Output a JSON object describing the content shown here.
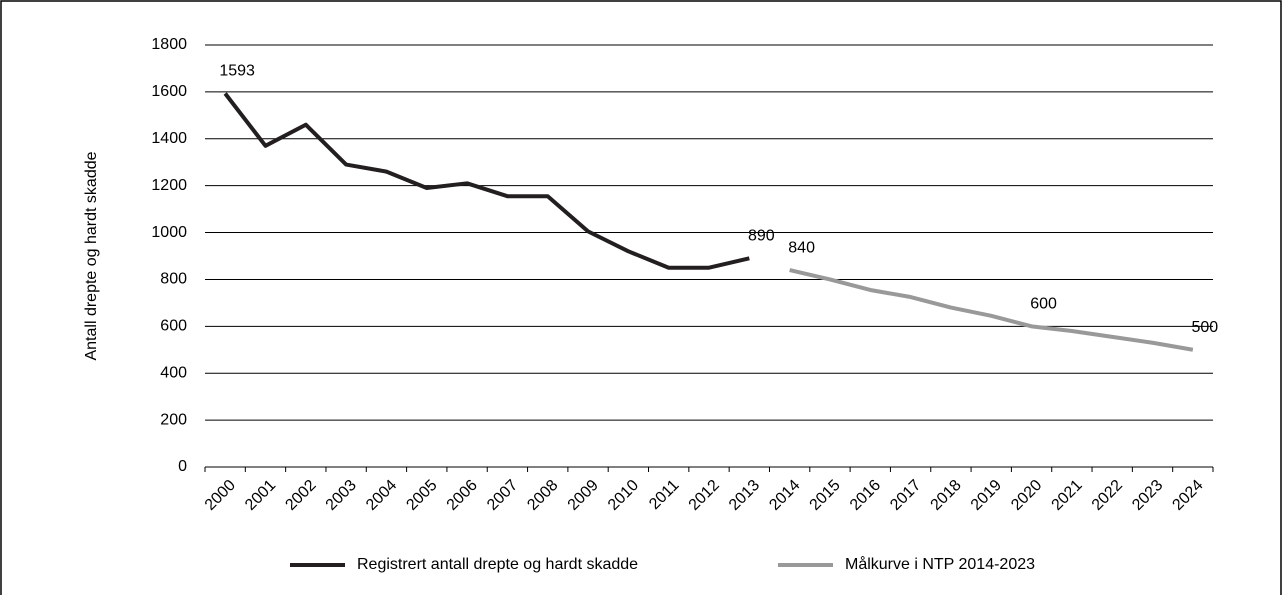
{
  "chart_data": {
    "type": "line",
    "y_label": "Antall drepte og hardt skadde",
    "categories": [
      "2000",
      "2001",
      "2002",
      "2003",
      "2004",
      "2005",
      "2006",
      "2007",
      "2008",
      "2009",
      "2010",
      "2011",
      "2012",
      "2013",
      "2014",
      "2015",
      "2016",
      "2017",
      "2018",
      "2019",
      "2020",
      "2021",
      "2022",
      "2023",
      "2024"
    ],
    "series": [
      {
        "name": "Registrert antall drepte og hardt skadde",
        "color": "#231f20",
        "values": [
          1593,
          1370,
          1460,
          1290,
          1260,
          1190,
          1210,
          1155,
          1155,
          1005,
          920,
          850,
          850,
          890,
          null,
          null,
          null,
          null,
          null,
          null,
          null,
          null,
          null,
          null,
          null
        ],
        "value_labels": [
          "1593",
          null,
          null,
          null,
          null,
          null,
          null,
          null,
          null,
          null,
          null,
          null,
          null,
          "890",
          null,
          null,
          null,
          null,
          null,
          null,
          null,
          null,
          null,
          null,
          null
        ]
      },
      {
        "name": "Målkurve i NTP 2014-2023",
        "color": "#999999",
        "values": [
          null,
          null,
          null,
          null,
          null,
          null,
          null,
          null,
          null,
          null,
          null,
          null,
          null,
          null,
          840,
          800,
          755,
          725,
          680,
          645,
          600,
          580,
          555,
          530,
          500
        ],
        "value_labels": [
          null,
          null,
          null,
          null,
          null,
          null,
          null,
          null,
          null,
          null,
          null,
          null,
          null,
          null,
          "840",
          null,
          null,
          null,
          null,
          null,
          "600",
          null,
          null,
          null,
          "500"
        ]
      }
    ],
    "ylim": [
      0,
      1800
    ],
    "yticks": [
      0,
      200,
      400,
      600,
      800,
      1000,
      1200,
      1400,
      1600,
      1800
    ],
    "grid": true,
    "legend": "bottom"
  }
}
